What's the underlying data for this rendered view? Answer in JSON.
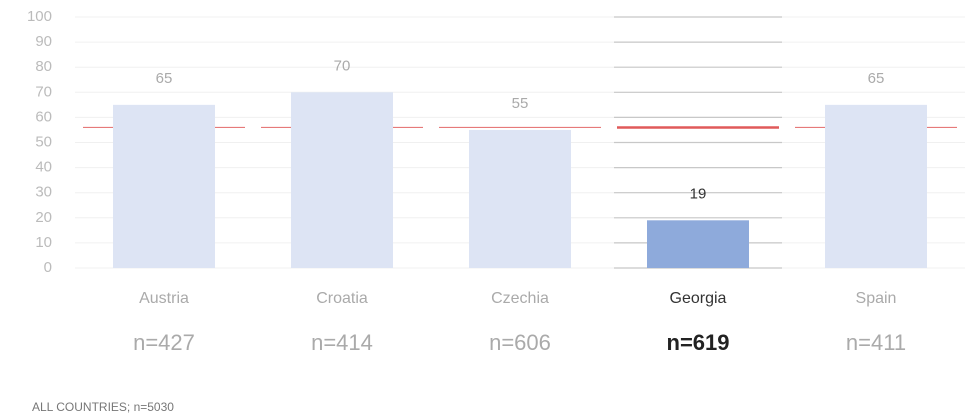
{
  "chart_data": {
    "type": "bar",
    "categories": [
      "Austria",
      "Croatia",
      "Czechia",
      "Georgia",
      "Spain"
    ],
    "values": [
      65,
      70,
      55,
      19,
      65
    ],
    "sample_sizes": [
      "n=427",
      "n=414",
      "n=606",
      "n=619",
      "n=411"
    ],
    "color": "#dde4f4",
    "highlight": "Georgia",
    "highlight_color": "#8eaadb",
    "reference_line": {
      "value": 56,
      "color": "#e05a5a"
    },
    "ylim": [
      0,
      100
    ],
    "yticks": [
      0,
      10,
      20,
      30,
      40,
      50,
      60,
      70,
      80,
      90,
      100
    ],
    "grid": true,
    "footnote": "ALL COUNTRIES; n=5030"
  }
}
